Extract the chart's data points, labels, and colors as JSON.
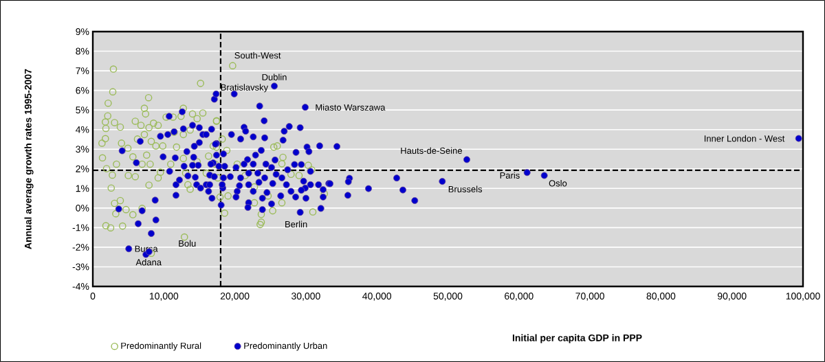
{
  "chart_data": {
    "type": "scatter",
    "xlabel": "Initial per capita GDP in PPP",
    "ylabel": "Annual average growth rates 1995-2007",
    "xlim": [
      0,
      100000
    ],
    "ylim": [
      -4,
      9
    ],
    "xticks": [
      {
        "value": 0,
        "label": "0"
      },
      {
        "value": 10000,
        "label": "10,000"
      },
      {
        "value": 20000,
        "label": "20,000"
      },
      {
        "value": 30000,
        "label": "30,000"
      },
      {
        "value": 40000,
        "label": "40,000"
      },
      {
        "value": 50000,
        "label": "50,000"
      },
      {
        "value": 60000,
        "label": "60,000"
      },
      {
        "value": 70000,
        "label": "70,000"
      },
      {
        "value": 80000,
        "label": "80,000"
      },
      {
        "value": 90000,
        "label": "90,000"
      },
      {
        "value": 100000,
        "label": "100,000"
      }
    ],
    "yticks": [
      {
        "value": -4,
        "label": "-4%"
      },
      {
        "value": -3,
        "label": "-3%"
      },
      {
        "value": -2,
        "label": "-2%"
      },
      {
        "value": -1,
        "label": "-1%"
      },
      {
        "value": 0,
        "label": "0%"
      },
      {
        "value": 1,
        "label": "1%"
      },
      {
        "value": 2,
        "label": "2%"
      },
      {
        "value": 3,
        "label": "3%"
      },
      {
        "value": 4,
        "label": "4%"
      },
      {
        "value": 5,
        "label": "5%"
      },
      {
        "value": 6,
        "label": "6%"
      },
      {
        "value": 7,
        "label": "7%"
      },
      {
        "value": 8,
        "label": "8%"
      },
      {
        "value": 9,
        "label": "9%"
      }
    ],
    "grid": "y",
    "legend": "bottom left",
    "marker": "circle",
    "ref_lines": [
      {
        "axis": "x",
        "value": 18000,
        "color": "#000000",
        "line_style": "dashed"
      },
      {
        "axis": "y",
        "value": 1.93,
        "color": "#000000",
        "line_style": "dashed"
      }
    ],
    "series": [
      {
        "name": "Predominantly Rural",
        "color": "#9bbb59",
        "x": [
          2900,
          2810,
          2160,
          2100,
          1770,
          1840,
          3060,
          3870,
          1770,
          1290,
          1360,
          1940,
          2750,
          2590,
          3060,
          3870,
          3230,
          4680,
          5640,
          1840,
          2510,
          4190,
          3330,
          4040,
          4940,
          5640,
          5000,
          5980,
          7910,
          7850,
          7260,
          7430,
          5980,
          6780,
          7910,
          8550,
          9200,
          6290,
          7260,
          8230,
          8880,
          9850,
          7580,
          8070,
          6940,
          9520,
          9200,
          10320,
          11300,
          12750,
          12420,
          14040,
          15490,
          15170,
          11450,
          12750,
          13710,
          14690,
          11790,
          12750,
          10970,
          13070,
          13390,
          13710,
          17420,
          18220,
          17420,
          16300,
          14690,
          15970,
          17600,
          17910,
          18560,
          12900,
          8230,
          6940,
          19690,
          17420,
          16950,
          17260,
          18870,
          20330,
          21460,
          22750,
          19040,
          22750,
          23720,
          23720,
          23560,
          25480,
          25970,
          26770,
          26620,
          27910,
          29040,
          30340,
          30820,
          32600,
          30980,
          25330,
          26620,
          24680
        ],
        "values": [
          7.09,
          5.93,
          5.35,
          4.7,
          4.39,
          4.06,
          4.36,
          4.13,
          3.54,
          3.31,
          2.56,
          2.01,
          1.68,
          1.02,
          0.24,
          0.38,
          -0.29,
          -0.08,
          -0.34,
          -0.9,
          -1.01,
          -0.92,
          2.24,
          3.31,
          3.05,
          2.61,
          1.66,
          1.6,
          1.17,
          5.63,
          5.09,
          4.8,
          4.43,
          4.22,
          4.1,
          4.33,
          4.22,
          3.52,
          3.75,
          3.4,
          3.17,
          3.17,
          2.7,
          2.24,
          2.24,
          1.83,
          1.54,
          4.64,
          4.64,
          5.09,
          4.68,
          4.8,
          4.85,
          6.36,
          3.87,
          3.75,
          3.98,
          4.56,
          3.11,
          2.53,
          2.24,
          1.78,
          1.19,
          0.96,
          4.45,
          3.52,
          3.11,
          2.65,
          2.36,
          1.78,
          1.54,
          0.56,
          -0.26,
          -1.48,
          -2.31,
          -0.02,
          7.26,
          4.43,
          3.17,
          2.24,
          2.94,
          2.24,
          1.66,
          1.08,
          0.62,
          0.27,
          -0.32,
          -0.72,
          -0.84,
          3.11,
          3.17,
          2.59,
          2.26,
          1.72,
          1.66,
          2.18,
          1.95,
          0.73,
          -0.2,
          -0.14,
          0.27,
          0.62
        ]
      },
      {
        "name": "Predominantly Urban",
        "color": "#0000cc",
        "x": [
          4130,
          6130,
          6680,
          3650,
          6390,
          6940,
          8780,
          8880,
          8230,
          5060,
          7480,
          7910,
          10750,
          12590,
          9520,
          10560,
          11450,
          12750,
          9900,
          11610,
          10810,
          11710,
          11710,
          12200,
          12850,
          13240,
          13390,
          14040,
          15000,
          15490,
          15970,
          15000,
          14290,
          14200,
          14840,
          14040,
          14430,
          14620,
          15170,
          15970,
          16300,
          16780,
          16460,
          16950,
          17420,
          17420,
          16720,
          17110,
          17360,
          18300,
          18070,
          18560,
          19910,
          23490,
          25560,
          29910,
          24130,
          21300,
          21520,
          22590,
          20810,
          24200,
          27660,
          26950,
          29200,
          26790,
          30160,
          31940,
          34370,
          28610,
          30430,
          28400,
          29360,
          30650,
          27430,
          25660,
          22910,
          23720,
          21780,
          19520,
          17260,
          18400,
          16620,
          17750,
          20170,
          21300,
          22590,
          24370,
          25170,
          21940,
          23230,
          25810,
          17110,
          18400,
          19360,
          20810,
          24200,
          25330,
          26620,
          23390,
          21940,
          20650,
          18220,
          16460,
          27260,
          29680,
          30650,
          31780,
          33230,
          32430,
          29910,
          29360,
          27910,
          26460,
          24520,
          22590,
          20330,
          20170,
          21940,
          21840,
          23880,
          23880,
          25170,
          28560,
          30010,
          32430,
          32110,
          29200,
          52660,
          33400,
          36140,
          35980,
          35910,
          38820,
          42790,
          43660,
          45330,
          49210,
          61150,
          63570,
          99390
        ],
        "values": [
          2.92,
          2.31,
          3.4,
          -0.05,
          -0.8,
          -0.14,
          0.4,
          -0.61,
          -1.3,
          -2.08,
          -2.37,
          -2.23,
          4.68,
          4.91,
          3.66,
          3.75,
          3.89,
          4.04,
          2.61,
          2.56,
          1.87,
          1.19,
          0.65,
          1.43,
          2.13,
          2.88,
          1.64,
          4.22,
          4.1,
          3.75,
          3.75,
          3.34,
          3.15,
          2.59,
          2.18,
          2.18,
          1.57,
          1.19,
          1.02,
          1.19,
          0.85,
          0.5,
          1.68,
          2.3,
          2.7,
          3.29,
          4.02,
          5.55,
          5.82,
          1.02,
          0.15,
          2.13,
          5.82,
          5.2,
          6.22,
          5.14,
          4.45,
          4.12,
          3.92,
          3.63,
          3.52,
          3.58,
          4.16,
          3.92,
          4.1,
          3.46,
          3.11,
          3.17,
          3.14,
          2.84,
          2.88,
          2.22,
          2.22,
          1.87,
          1.95,
          2.45,
          2.7,
          2.94,
          2.47,
          3.75,
          3.26,
          2.76,
          2.24,
          2.13,
          2.07,
          2.24,
          2.24,
          2.24,
          2.07,
          1.78,
          1.78,
          1.72,
          1.6,
          1.54,
          1.6,
          1.54,
          1.54,
          1.25,
          1.54,
          1.31,
          1.19,
          1.14,
          1.19,
          1.19,
          1.19,
          1.37,
          1.19,
          1.19,
          1.25,
          0.94,
          1.02,
          0.91,
          0.85,
          0.62,
          0.79,
          0.85,
          0.85,
          0.56,
          0.27,
          0.03,
          0.5,
          -0.08,
          0.21,
          0.56,
          0.5,
          0.56,
          -0.02,
          -0.22,
          2.47,
          1.24,
          1.52,
          1.34,
          0.65,
          0.99,
          1.53,
          0.92,
          0.38,
          1.36,
          1.81,
          1.66,
          3.55
        ]
      }
    ],
    "annotations": [
      {
        "text": "South-West",
        "x": 19690,
        "y": 7.26
      },
      {
        "text": "Dublin",
        "x": 25560,
        "y": 6.22
      },
      {
        "text": "Bratislavsky",
        "x": 17360,
        "y": 5.82
      },
      {
        "text": "Miasto Warszawa",
        "x": 29910,
        "y": 5.14
      },
      {
        "text": "Hauts-de-Seine",
        "x": 52660,
        "y": 2.47
      },
      {
        "text": "Brussels",
        "x": 49210,
        "y": 1.36
      },
      {
        "text": "Paris",
        "x": 61150,
        "y": 1.81
      },
      {
        "text": "Oslo",
        "x": 63570,
        "y": 1.66
      },
      {
        "text": "Inner London - West",
        "x": 99390,
        "y": 3.55
      },
      {
        "text": "Berlin",
        "x": 29200,
        "y": -0.22
      },
      {
        "text": "Bolu",
        "x": 12900,
        "y": -1.48
      },
      {
        "text": "Bursa",
        "x": 5060,
        "y": -2.08
      },
      {
        "text": "Adana",
        "x": 7480,
        "y": -2.37
      }
    ]
  }
}
